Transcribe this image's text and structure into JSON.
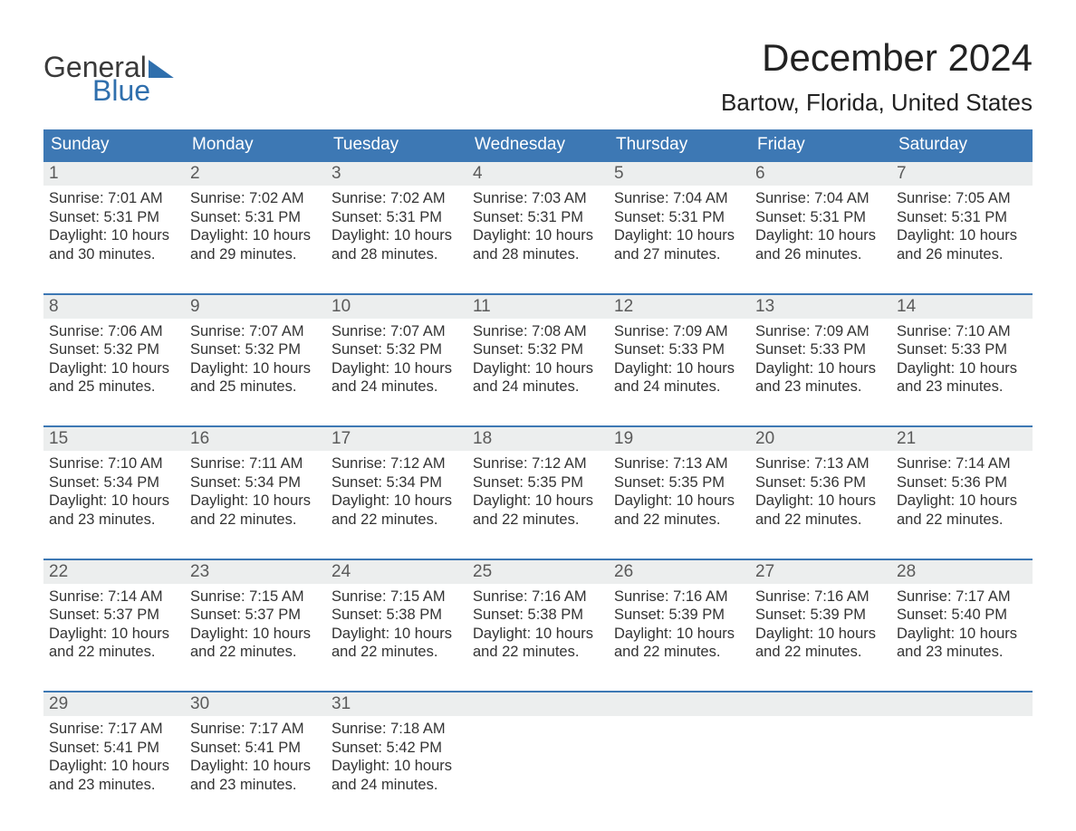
{
  "logo": {
    "word1": "General",
    "word2": "Blue"
  },
  "title": "December 2024",
  "location": "Bartow, Florida, United States",
  "colors": {
    "brand_blue": "#2f6fad",
    "header_blue": "#3d78b4",
    "row_grey": "#eceeee",
    "text_dark": "#333333",
    "text_muted": "#5a5a5a",
    "white": "#ffffff"
  },
  "days_of_week": [
    "Sunday",
    "Monday",
    "Tuesday",
    "Wednesday",
    "Thursday",
    "Friday",
    "Saturday"
  ],
  "weeks": [
    [
      {
        "n": "1",
        "sunrise": "Sunrise: 7:01 AM",
        "sunset": "Sunset: 5:31 PM",
        "d1": "Daylight: 10 hours",
        "d2": "and 30 minutes."
      },
      {
        "n": "2",
        "sunrise": "Sunrise: 7:02 AM",
        "sunset": "Sunset: 5:31 PM",
        "d1": "Daylight: 10 hours",
        "d2": "and 29 minutes."
      },
      {
        "n": "3",
        "sunrise": "Sunrise: 7:02 AM",
        "sunset": "Sunset: 5:31 PM",
        "d1": "Daylight: 10 hours",
        "d2": "and 28 minutes."
      },
      {
        "n": "4",
        "sunrise": "Sunrise: 7:03 AM",
        "sunset": "Sunset: 5:31 PM",
        "d1": "Daylight: 10 hours",
        "d2": "and 28 minutes."
      },
      {
        "n": "5",
        "sunrise": "Sunrise: 7:04 AM",
        "sunset": "Sunset: 5:31 PM",
        "d1": "Daylight: 10 hours",
        "d2": "and 27 minutes."
      },
      {
        "n": "6",
        "sunrise": "Sunrise: 7:04 AM",
        "sunset": "Sunset: 5:31 PM",
        "d1": "Daylight: 10 hours",
        "d2": "and 26 minutes."
      },
      {
        "n": "7",
        "sunrise": "Sunrise: 7:05 AM",
        "sunset": "Sunset: 5:31 PM",
        "d1": "Daylight: 10 hours",
        "d2": "and 26 minutes."
      }
    ],
    [
      {
        "n": "8",
        "sunrise": "Sunrise: 7:06 AM",
        "sunset": "Sunset: 5:32 PM",
        "d1": "Daylight: 10 hours",
        "d2": "and 25 minutes."
      },
      {
        "n": "9",
        "sunrise": "Sunrise: 7:07 AM",
        "sunset": "Sunset: 5:32 PM",
        "d1": "Daylight: 10 hours",
        "d2": "and 25 minutes."
      },
      {
        "n": "10",
        "sunrise": "Sunrise: 7:07 AM",
        "sunset": "Sunset: 5:32 PM",
        "d1": "Daylight: 10 hours",
        "d2": "and 24 minutes."
      },
      {
        "n": "11",
        "sunrise": "Sunrise: 7:08 AM",
        "sunset": "Sunset: 5:32 PM",
        "d1": "Daylight: 10 hours",
        "d2": "and 24 minutes."
      },
      {
        "n": "12",
        "sunrise": "Sunrise: 7:09 AM",
        "sunset": "Sunset: 5:33 PM",
        "d1": "Daylight: 10 hours",
        "d2": "and 24 minutes."
      },
      {
        "n": "13",
        "sunrise": "Sunrise: 7:09 AM",
        "sunset": "Sunset: 5:33 PM",
        "d1": "Daylight: 10 hours",
        "d2": "and 23 minutes."
      },
      {
        "n": "14",
        "sunrise": "Sunrise: 7:10 AM",
        "sunset": "Sunset: 5:33 PM",
        "d1": "Daylight: 10 hours",
        "d2": "and 23 minutes."
      }
    ],
    [
      {
        "n": "15",
        "sunrise": "Sunrise: 7:10 AM",
        "sunset": "Sunset: 5:34 PM",
        "d1": "Daylight: 10 hours",
        "d2": "and 23 minutes."
      },
      {
        "n": "16",
        "sunrise": "Sunrise: 7:11 AM",
        "sunset": "Sunset: 5:34 PM",
        "d1": "Daylight: 10 hours",
        "d2": "and 22 minutes."
      },
      {
        "n": "17",
        "sunrise": "Sunrise: 7:12 AM",
        "sunset": "Sunset: 5:34 PM",
        "d1": "Daylight: 10 hours",
        "d2": "and 22 minutes."
      },
      {
        "n": "18",
        "sunrise": "Sunrise: 7:12 AM",
        "sunset": "Sunset: 5:35 PM",
        "d1": "Daylight: 10 hours",
        "d2": "and 22 minutes."
      },
      {
        "n": "19",
        "sunrise": "Sunrise: 7:13 AM",
        "sunset": "Sunset: 5:35 PM",
        "d1": "Daylight: 10 hours",
        "d2": "and 22 minutes."
      },
      {
        "n": "20",
        "sunrise": "Sunrise: 7:13 AM",
        "sunset": "Sunset: 5:36 PM",
        "d1": "Daylight: 10 hours",
        "d2": "and 22 minutes."
      },
      {
        "n": "21",
        "sunrise": "Sunrise: 7:14 AM",
        "sunset": "Sunset: 5:36 PM",
        "d1": "Daylight: 10 hours",
        "d2": "and 22 minutes."
      }
    ],
    [
      {
        "n": "22",
        "sunrise": "Sunrise: 7:14 AM",
        "sunset": "Sunset: 5:37 PM",
        "d1": "Daylight: 10 hours",
        "d2": "and 22 minutes."
      },
      {
        "n": "23",
        "sunrise": "Sunrise: 7:15 AM",
        "sunset": "Sunset: 5:37 PM",
        "d1": "Daylight: 10 hours",
        "d2": "and 22 minutes."
      },
      {
        "n": "24",
        "sunrise": "Sunrise: 7:15 AM",
        "sunset": "Sunset: 5:38 PM",
        "d1": "Daylight: 10 hours",
        "d2": "and 22 minutes."
      },
      {
        "n": "25",
        "sunrise": "Sunrise: 7:16 AM",
        "sunset": "Sunset: 5:38 PM",
        "d1": "Daylight: 10 hours",
        "d2": "and 22 minutes."
      },
      {
        "n": "26",
        "sunrise": "Sunrise: 7:16 AM",
        "sunset": "Sunset: 5:39 PM",
        "d1": "Daylight: 10 hours",
        "d2": "and 22 minutes."
      },
      {
        "n": "27",
        "sunrise": "Sunrise: 7:16 AM",
        "sunset": "Sunset: 5:39 PM",
        "d1": "Daylight: 10 hours",
        "d2": "and 22 minutes."
      },
      {
        "n": "28",
        "sunrise": "Sunrise: 7:17 AM",
        "sunset": "Sunset: 5:40 PM",
        "d1": "Daylight: 10 hours",
        "d2": "and 23 minutes."
      }
    ],
    [
      {
        "n": "29",
        "sunrise": "Sunrise: 7:17 AM",
        "sunset": "Sunset: 5:41 PM",
        "d1": "Daylight: 10 hours",
        "d2": "and 23 minutes."
      },
      {
        "n": "30",
        "sunrise": "Sunrise: 7:17 AM",
        "sunset": "Sunset: 5:41 PM",
        "d1": "Daylight: 10 hours",
        "d2": "and 23 minutes."
      },
      {
        "n": "31",
        "sunrise": "Sunrise: 7:18 AM",
        "sunset": "Sunset: 5:42 PM",
        "d1": "Daylight: 10 hours",
        "d2": "and 24 minutes."
      },
      null,
      null,
      null,
      null
    ]
  ]
}
